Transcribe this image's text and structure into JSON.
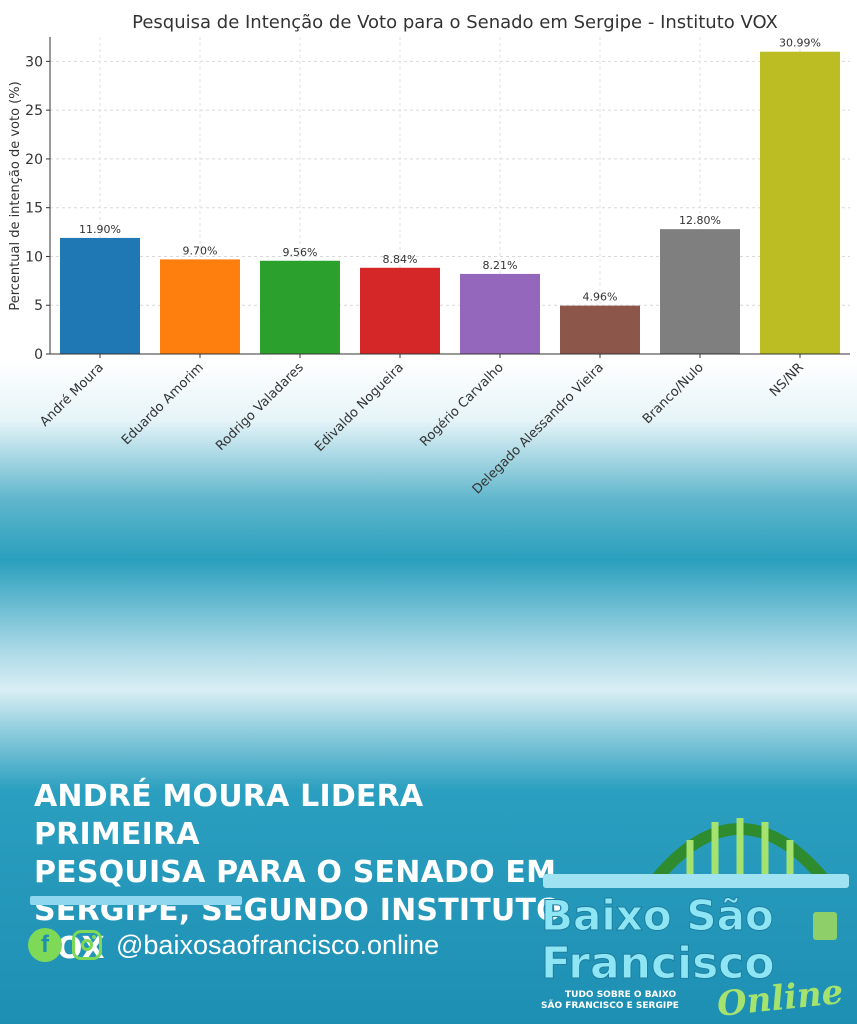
{
  "chart_data": {
    "type": "bar",
    "title": "Pesquisa de Intenção de Voto para o Senado em Sergipe - Instituto VOX",
    "ylabel": "Percentual de intenção de voto (%)",
    "xlabel": "",
    "categories": [
      "André Moura",
      "Eduardo Amorim",
      "Rodrigo Valadares",
      "Edivaldo Nogueira",
      "Rogério Carvalho",
      "Delegado Alessandro Vieira",
      "Branco/Nulo",
      "NS/NR"
    ],
    "values": [
      11.9,
      9.7,
      9.56,
      8.84,
      8.21,
      4.96,
      12.8,
      30.99
    ],
    "value_labels": [
      "11.90%",
      "9.70%",
      "9.56%",
      "8.84%",
      "8.21%",
      "4.96%",
      "12.80%",
      "30.99%"
    ],
    "colors": [
      "#1f77b4",
      "#ff7f0e",
      "#2ca02c",
      "#d62728",
      "#9467bd",
      "#8c564b",
      "#7f7f7f",
      "#bcbd22"
    ],
    "yticks": [
      0,
      5,
      10,
      15,
      20,
      25,
      30
    ],
    "ylim": [
      0,
      32.5
    ],
    "grid": true
  },
  "headline": {
    "lines": [
      "ANDRÉ MOURA LIDERA PRIMEIRA",
      "PESQUISA PARA O SENADO EM",
      "SERGIPE, SEGUNDO INSTITUTO VOX"
    ]
  },
  "social": {
    "facebook_icon_glyph": "f",
    "handle": "@baixosaofrancisco.online"
  },
  "logo": {
    "line1": "Baixo São",
    "line2": "Francisco",
    "tagline1": "TUDO SOBRE O BAIXO",
    "tagline2": "SÃO FRANCISCO E SERGIPE",
    "script": "Online"
  },
  "colors": {
    "accent_green": "#7ed957",
    "logo_dark_green": "#2e8b2e"
  }
}
